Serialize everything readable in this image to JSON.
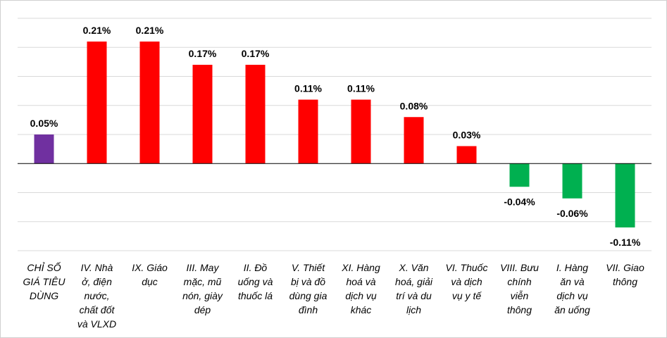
{
  "chart_data": {
    "type": "bar",
    "title": "",
    "xlabel": "",
    "ylabel": "",
    "ylim": [
      -0.15,
      0.25
    ],
    "grid": true,
    "legend": "none",
    "categories": [
      "CHỈ SỐ GIÁ TIÊU DÙNG",
      "IV. Nhà ở, điện nước, chất đốt và VLXD",
      "IX. Giáo dục",
      "III. May mặc, mũ nón, giày dép",
      "II. Đồ uống và thuốc lá",
      "V. Thiết bị và đồ dùng gia đình",
      "XI. Hàng hoá và dịch vụ khác",
      "X. Văn hoá, giải trí và du lịch",
      "VI. Thuốc và dịch vụ y tế",
      "VIII. Bưu chính viễn thông",
      "I. Hàng ăn và dịch vụ ăn uống",
      "VII. Giao thông"
    ],
    "category_lines": [
      [
        "CHỈ SỐ",
        "GIÁ TIÊU",
        "DÙNG"
      ],
      [
        "IV. Nhà",
        "ở, điện",
        "nước,",
        "chất đốt",
        "và VLXD"
      ],
      [
        "IX. Giáo",
        "dục"
      ],
      [
        "III. May",
        "mặc, mũ",
        "nón, giày",
        "dép"
      ],
      [
        "II. Đồ",
        "uống và",
        "thuốc lá"
      ],
      [
        "V. Thiết",
        "bị và đồ",
        "dùng gia",
        "đình"
      ],
      [
        "XI. Hàng",
        "hoá và",
        "dịch vụ",
        "khác"
      ],
      [
        "X. Văn",
        "hoá, giải",
        "trí và du",
        "lịch"
      ],
      [
        "VI. Thuốc",
        "và dịch",
        "vụ y tế"
      ],
      [
        "VIII. Bưu",
        "chính",
        "viễn",
        "thông"
      ],
      [
        "I. Hàng",
        "ăn và",
        "dịch vụ",
        "ăn uống"
      ],
      [
        "VII. Giao",
        "thông"
      ]
    ],
    "values": [
      0.05,
      0.21,
      0.21,
      0.17,
      0.17,
      0.11,
      0.11,
      0.08,
      0.03,
      -0.04,
      -0.06,
      -0.11
    ],
    "data_labels": [
      "0.05%",
      "0.21%",
      "0.21%",
      "0.17%",
      "0.17%",
      "0.11%",
      "0.11%",
      "0.08%",
      "0.03%",
      "-0.04%",
      "-0.06%",
      "-0.11%"
    ],
    "colors": {
      "overall": "#7030A0",
      "increase": "#FF0000",
      "decrease": "#00B050",
      "gridline": "#D9D9D9",
      "axis": "#000000"
    }
  }
}
